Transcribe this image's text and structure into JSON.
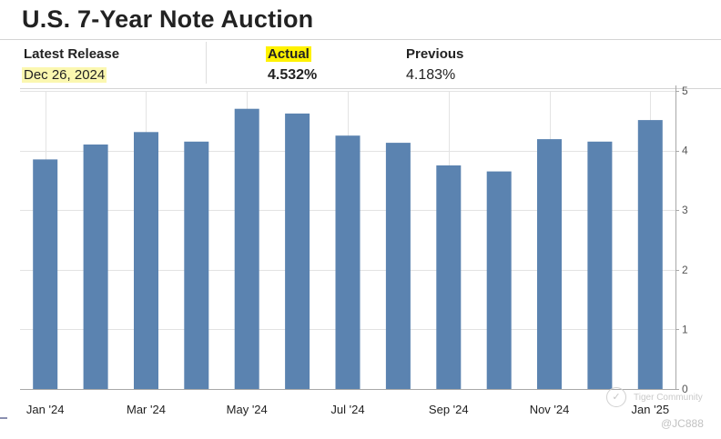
{
  "header": {
    "title": "U.S. 7-Year Note Auction"
  },
  "stats": {
    "latest_release_label": "Latest Release",
    "latest_release_date": "Dec 26, 2024",
    "actual_label": "Actual",
    "actual_value": "4.532%",
    "previous_label": "Previous",
    "previous_value": "4.183%"
  },
  "watermark": {
    "line1": "Tiger Community",
    "line2": "@JC888"
  },
  "colors": {
    "bar": "#5b83b0",
    "highlight": "#fff200",
    "grid": "#e3e3e3"
  },
  "chart_data": {
    "type": "bar",
    "title": "U.S. 7-Year Note Auction",
    "categories": [
      "Jan '24",
      "Feb '24",
      "Mar '24",
      "Apr '24",
      "May '24",
      "Jun '24",
      "Jul '24",
      "Aug '24",
      "Sep '24",
      "Oct '24",
      "Nov '24",
      "Dec '24",
      "Jan '25"
    ],
    "x_tick_labels": [
      "Jan '24",
      "",
      "Mar '24",
      "",
      "May '24",
      "",
      "Jul '24",
      "",
      "Sep '24",
      "",
      "Nov '24",
      "",
      "Jan '25"
    ],
    "values": [
      3.85,
      4.1,
      4.31,
      4.15,
      4.7,
      4.62,
      4.25,
      4.13,
      3.75,
      3.65,
      4.19,
      4.15,
      4.51
    ],
    "ylim": [
      0,
      5
    ],
    "yticks": [
      0,
      1,
      2,
      3,
      4,
      5
    ],
    "xlabel": "",
    "ylabel": "",
    "grid": true,
    "y_axis_position": "right"
  }
}
